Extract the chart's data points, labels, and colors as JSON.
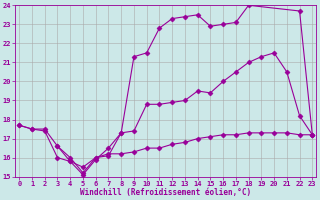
{
  "xlabel": "Windchill (Refroidissement éolien,°C)",
  "bg_color": "#cce8e8",
  "line_color": "#990099",
  "grid_color": "#aaaaaa",
  "xmin": 0,
  "xmax": 23,
  "ymin": 15,
  "ymax": 24,
  "line1_x": [
    0,
    1,
    2,
    3,
    4,
    5,
    6,
    7,
    8,
    9,
    10,
    11,
    12,
    13,
    14,
    15,
    16,
    17,
    18,
    19,
    20,
    21,
    22,
    23
  ],
  "line1_y": [
    17.7,
    17.5,
    17.5,
    16.6,
    16.0,
    15.2,
    16.0,
    16.1,
    17.3,
    17.4,
    18.8,
    18.8,
    18.9,
    19.0,
    19.5,
    19.4,
    20.0,
    20.5,
    21.0,
    21.3,
    21.5,
    20.5,
    18.2,
    17.2
  ],
  "line2_x": [
    3,
    4,
    5,
    6,
    7,
    8,
    9,
    10,
    11,
    12,
    13,
    14,
    15,
    16,
    17,
    18,
    22,
    23
  ],
  "line2_y": [
    16.6,
    15.8,
    15.1,
    15.9,
    16.5,
    17.3,
    21.3,
    21.5,
    22.8,
    23.3,
    23.4,
    23.5,
    22.9,
    23.0,
    23.1,
    24.0,
    23.7,
    17.2
  ],
  "line3_x": [
    0,
    1,
    2,
    3,
    4,
    5,
    6,
    7,
    8,
    9,
    10,
    11,
    12,
    13,
    14,
    15,
    16,
    17,
    18,
    19,
    20,
    21,
    22,
    23
  ],
  "line3_y": [
    17.7,
    17.5,
    17.4,
    16.0,
    15.8,
    15.5,
    16.0,
    16.2,
    16.2,
    16.3,
    16.5,
    16.5,
    16.7,
    16.8,
    17.0,
    17.1,
    17.2,
    17.2,
    17.3,
    17.3,
    17.3,
    17.3,
    17.2,
    17.2
  ]
}
